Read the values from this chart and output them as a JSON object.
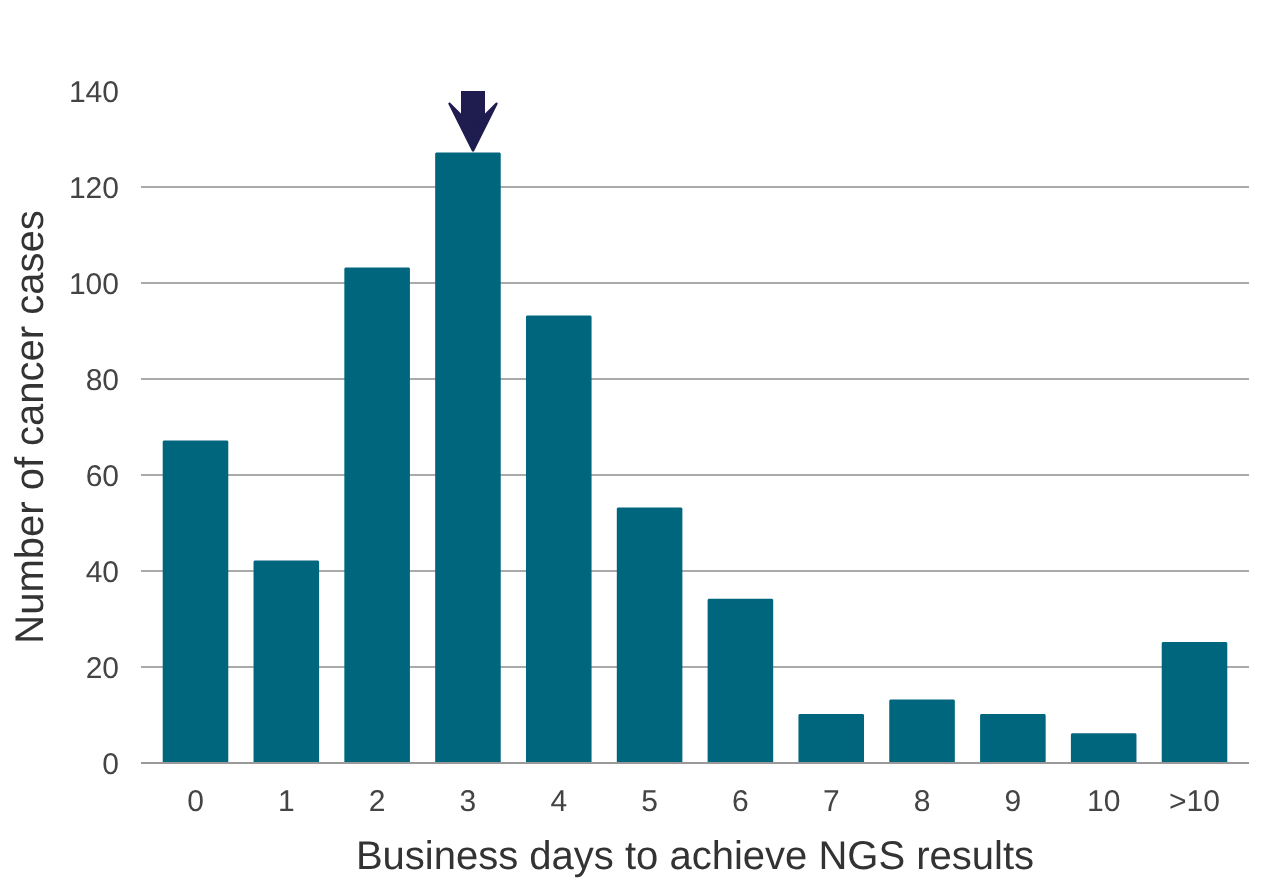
{
  "chart_data": {
    "type": "bar",
    "xlabel": "Business days to achieve NGS results",
    "ylabel": "Number of cancer cases",
    "categories": [
      "0",
      "1",
      "2",
      "3",
      "4",
      "5",
      "6",
      "7",
      "8",
      "9",
      "10",
      ">10"
    ],
    "values": [
      67,
      42,
      103,
      127,
      93,
      53,
      34,
      10,
      13,
      10,
      6,
      25
    ],
    "color": "#00667e",
    "ylim": [
      0,
      140
    ],
    "yticks": [
      0,
      20,
      40,
      60,
      80,
      100,
      120,
      140
    ],
    "grid": "y"
  }
}
